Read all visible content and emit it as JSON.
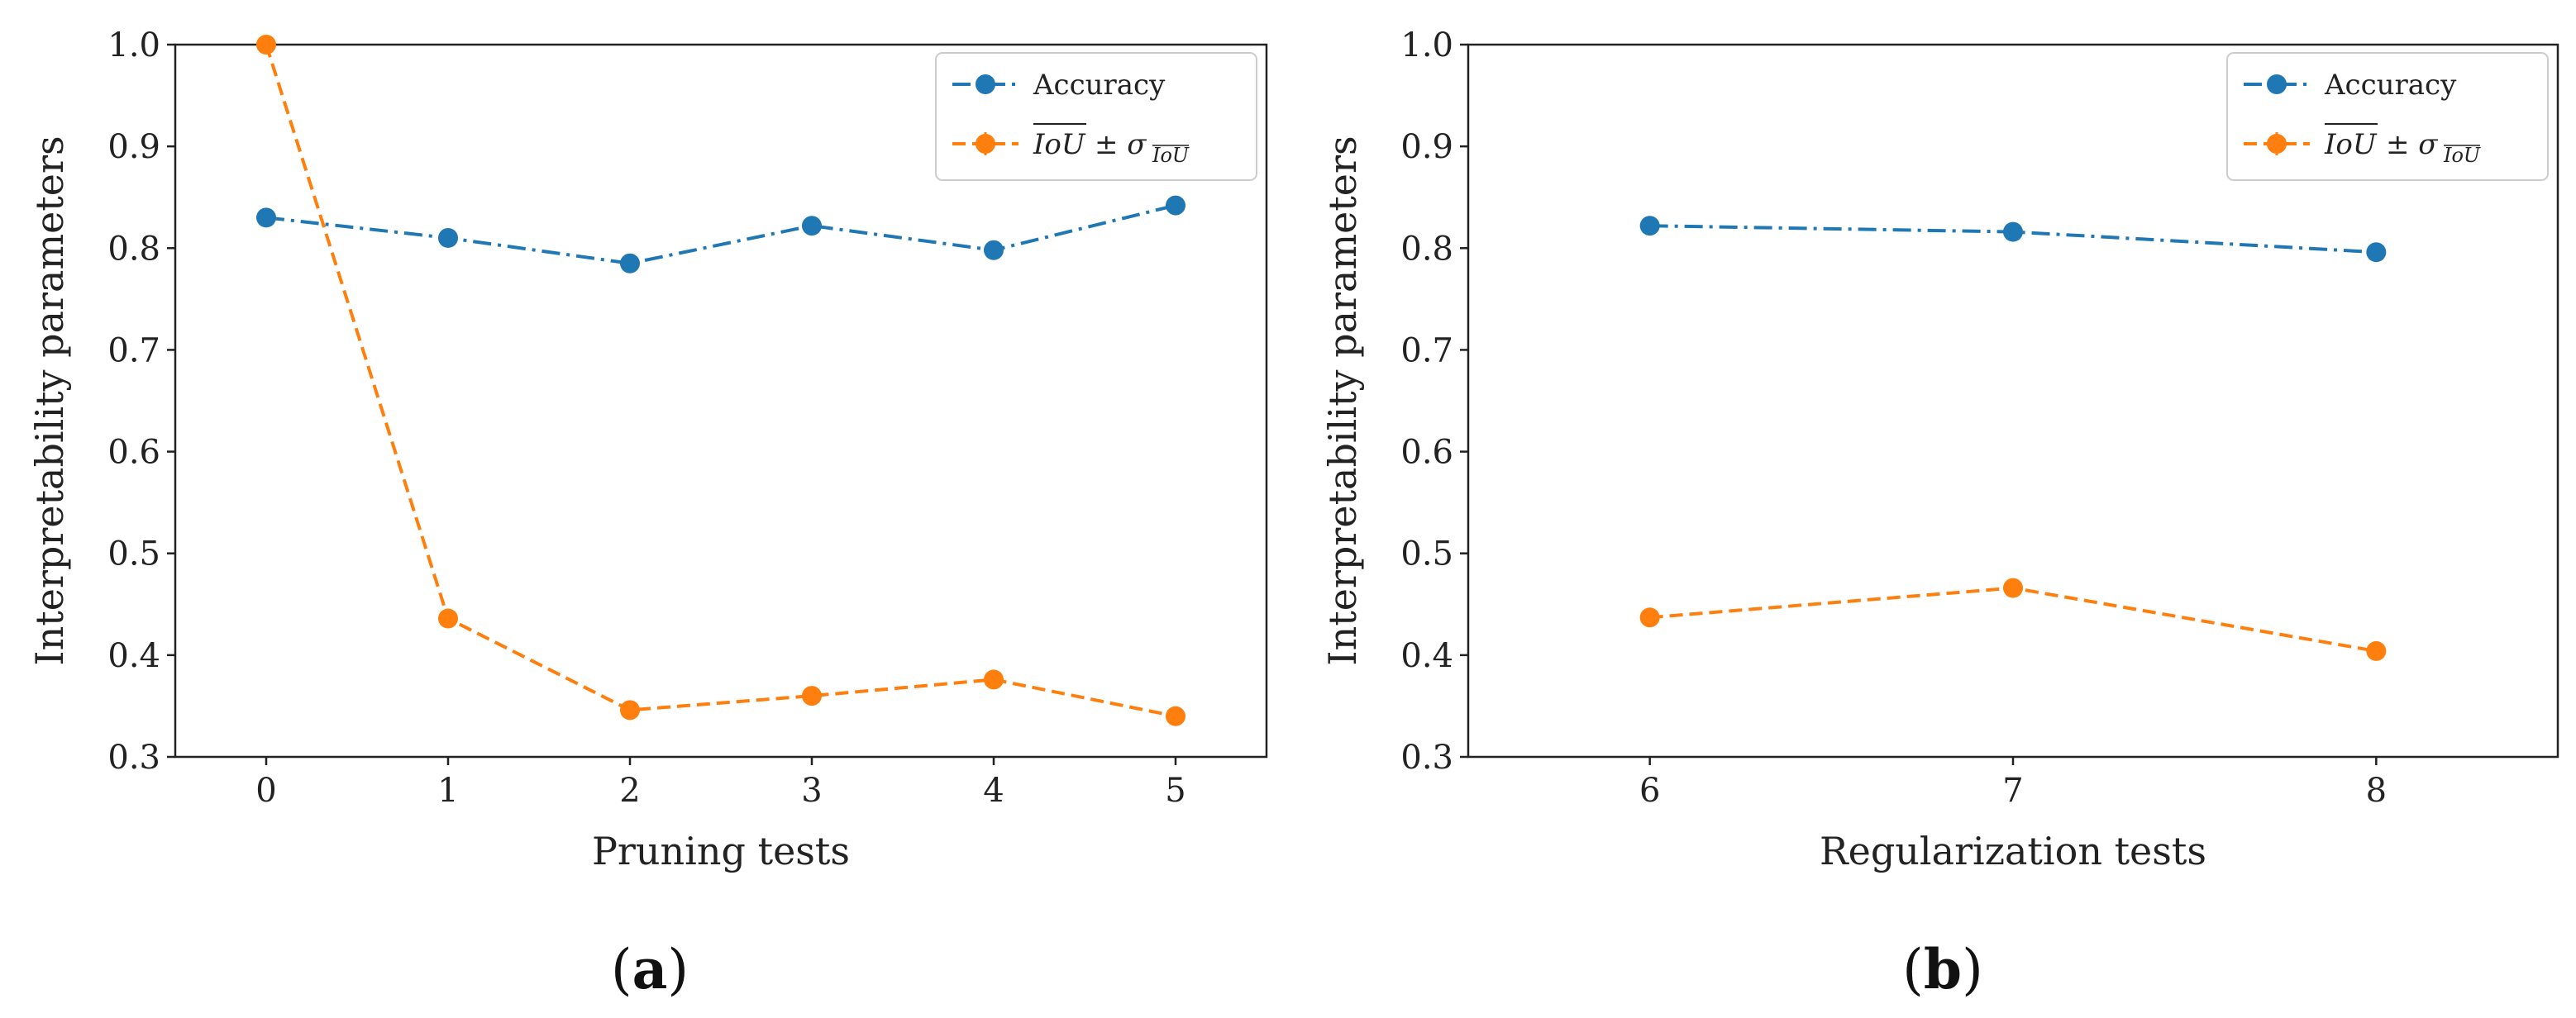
{
  "chart_data": [
    {
      "id": "a",
      "type": "line",
      "caption_letter": "a",
      "xlabel": "Pruning tests",
      "ylabel": "Interpretability parameters",
      "x": [
        0,
        1,
        2,
        3,
        4,
        5
      ],
      "xlim": [
        -0.5,
        5.5
      ],
      "ylim": [
        0.3,
        1.0
      ],
      "yticks": [
        "0.3",
        "0.4",
        "0.5",
        "0.6",
        "0.7",
        "0.8",
        "0.9",
        "1.0"
      ],
      "xticks": [
        "0",
        "1",
        "2",
        "3",
        "4",
        "5"
      ],
      "series": [
        {
          "name": "Accuracy",
          "color": "#1f77b4",
          "style": "dashdot",
          "values": [
            0.83,
            0.81,
            0.785,
            0.822,
            0.798,
            0.842
          ]
        },
        {
          "name": "IoU ± σIoU",
          "color": "#ff7f0e",
          "style": "dashed",
          "values": [
            1.0,
            0.436,
            0.346,
            0.36,
            0.376,
            0.34
          ]
        }
      ],
      "legend": {
        "placement": "top-right",
        "accuracy_label": "Accuracy",
        "iou_main": "IoU",
        "iou_pm": "± σ",
        "iou_sub": "IoU"
      }
    },
    {
      "id": "b",
      "type": "line",
      "caption_letter": "b",
      "xlabel": "Regularization tests",
      "ylabel": "Interpretability parameters",
      "x": [
        6,
        7,
        8
      ],
      "xlim": [
        5.5,
        8.5
      ],
      "ylim": [
        0.3,
        1.0
      ],
      "yticks": [
        "0.3",
        "0.4",
        "0.5",
        "0.6",
        "0.7",
        "0.8",
        "0.9",
        "1.0"
      ],
      "xticks": [
        "6",
        "7",
        "8"
      ],
      "series": [
        {
          "name": "Accuracy",
          "color": "#1f77b4",
          "style": "dashdot",
          "values": [
            0.822,
            0.816,
            0.796
          ]
        },
        {
          "name": "IoU ± σIoU",
          "color": "#ff7f0e",
          "style": "dashed",
          "values": [
            0.437,
            0.466,
            0.404
          ]
        }
      ],
      "legend": {
        "placement": "top-right",
        "accuracy_label": "Accuracy",
        "iou_main": "IoU",
        "iou_pm": "± σ",
        "iou_sub": "IoU"
      }
    }
  ]
}
